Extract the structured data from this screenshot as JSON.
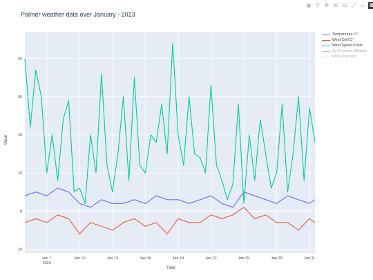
{
  "toolbar": {
    "icons": [
      "camera-icon",
      "zoom-icon",
      "pan-icon",
      "zoom-in-icon",
      "zoom-out-icon",
      "autoscale-icon",
      "reset-axes-icon",
      "plotly-logo-icon"
    ]
  },
  "colors": {
    "plot_bg": "#e5ecf6",
    "temperature": "#636efa",
    "wind_chill": "#ef553b",
    "wind_speed": "#00cc96",
    "air_pressure": "#ab63fa",
    "wind_direction": "#ffa15a"
  },
  "chart_data": {
    "type": "line",
    "title": "Palmer weather data over January - 2023",
    "xlabel": "Time",
    "ylabel": "Value",
    "xlim": [
      "2023-01-05",
      "2023-01-31T12:00"
    ],
    "ylim": [
      -11,
      47
    ],
    "x_ticks": [
      {
        "date": "2023-01-07",
        "label": "Jan 7",
        "sub": "2023"
      },
      {
        "date": "2023-01-10",
        "label": "Jan 10"
      },
      {
        "date": "2023-01-13",
        "label": "Jan 13"
      },
      {
        "date": "2023-01-16",
        "label": "Jan 16"
      },
      {
        "date": "2023-01-19",
        "label": "Jan 19"
      },
      {
        "date": "2023-01-22",
        "label": "Jan 22"
      },
      {
        "date": "2023-01-25",
        "label": "Jan 25"
      },
      {
        "date": "2023-01-28",
        "label": "Jan 28"
      },
      {
        "date": "2023-01-31",
        "label": "Jan 31"
      }
    ],
    "y_ticks": [
      -10,
      0,
      10,
      20,
      30,
      40
    ],
    "grid": true,
    "legend_position": "right",
    "series": [
      {
        "name": "Temperature C°",
        "visible": true,
        "x": [
          "2023-01-05",
          "2023-01-06",
          "2023-01-07",
          "2023-01-08",
          "2023-01-09",
          "2023-01-10",
          "2023-01-11",
          "2023-01-12",
          "2023-01-13",
          "2023-01-14",
          "2023-01-15",
          "2023-01-16",
          "2023-01-17",
          "2023-01-18",
          "2023-01-19",
          "2023-01-20",
          "2023-01-21",
          "2023-01-22",
          "2023-01-23",
          "2023-01-24",
          "2023-01-25",
          "2023-01-26",
          "2023-01-27",
          "2023-01-28",
          "2023-01-29",
          "2023-01-30",
          "2023-01-31",
          "2023-01-31T12:00"
        ],
        "values": [
          4,
          5,
          4,
          6,
          5,
          2,
          1,
          3,
          2,
          2,
          3,
          2,
          4,
          3,
          3,
          2,
          3,
          4,
          2,
          1,
          5,
          4,
          3,
          2,
          4,
          3,
          2,
          3
        ]
      },
      {
        "name": "Wind Chill C°",
        "visible": true,
        "x": [
          "2023-01-05",
          "2023-01-06",
          "2023-01-07",
          "2023-01-08",
          "2023-01-09",
          "2023-01-10",
          "2023-01-11",
          "2023-01-12",
          "2023-01-13",
          "2023-01-14",
          "2023-01-15",
          "2023-01-16",
          "2023-01-17",
          "2023-01-18",
          "2023-01-19",
          "2023-01-20",
          "2023-01-21",
          "2023-01-22",
          "2023-01-23",
          "2023-01-24",
          "2023-01-25",
          "2023-01-26",
          "2023-01-27",
          "2023-01-28",
          "2023-01-29",
          "2023-01-30",
          "2023-01-31",
          "2023-01-31T12:00"
        ],
        "values": [
          -3,
          -2,
          -3,
          -1,
          -2,
          -6,
          -3,
          -4,
          -5,
          -3,
          -2,
          -4,
          -3,
          -6,
          -2,
          -3,
          -3,
          -1,
          -2,
          -1,
          1,
          -2,
          -1,
          -3,
          -3,
          -5,
          -2,
          -3
        ]
      },
      {
        "name": "Wind Speed Knots",
        "visible": true,
        "x": [
          "2023-01-05",
          "2023-01-05T12:00",
          "2023-01-06",
          "2023-01-06T12:00",
          "2023-01-07",
          "2023-01-07T12:00",
          "2023-01-08",
          "2023-01-08T12:00",
          "2023-01-09",
          "2023-01-09T12:00",
          "2023-01-10",
          "2023-01-10T12:00",
          "2023-01-11",
          "2023-01-11T12:00",
          "2023-01-12",
          "2023-01-12T12:00",
          "2023-01-13",
          "2023-01-13T12:00",
          "2023-01-14",
          "2023-01-14T12:00",
          "2023-01-15",
          "2023-01-15T12:00",
          "2023-01-16",
          "2023-01-16T12:00",
          "2023-01-17",
          "2023-01-17T12:00",
          "2023-01-18",
          "2023-01-18T12:00",
          "2023-01-19",
          "2023-01-19T12:00",
          "2023-01-20",
          "2023-01-20T12:00",
          "2023-01-21",
          "2023-01-21T12:00",
          "2023-01-22",
          "2023-01-22T12:00",
          "2023-01-23",
          "2023-01-23T12:00",
          "2023-01-24",
          "2023-01-24T12:00",
          "2023-01-25",
          "2023-01-25T12:00",
          "2023-01-26",
          "2023-01-26T12:00",
          "2023-01-27",
          "2023-01-27T12:00",
          "2023-01-28",
          "2023-01-28T12:00",
          "2023-01-29",
          "2023-01-29T12:00",
          "2023-01-30",
          "2023-01-30T12:00",
          "2023-01-31",
          "2023-01-31T12:00"
        ],
        "values": [
          40,
          22,
          37,
          30,
          10,
          20,
          8,
          24,
          29,
          5,
          6,
          2,
          20,
          10,
          36,
          12,
          5,
          15,
          30,
          8,
          35,
          12,
          10,
          20,
          18,
          28,
          15,
          44,
          20,
          12,
          30,
          15,
          14,
          10,
          33,
          12,
          8,
          3,
          7,
          28,
          2,
          20,
          8,
          24,
          15,
          6,
          10,
          28,
          5,
          15,
          30,
          8,
          27,
          18
        ]
      },
      {
        "name": "Air Pressure Millibars",
        "visible": false,
        "x": [],
        "values": []
      },
      {
        "name": "Wind Direction",
        "visible": false,
        "x": [],
        "values": []
      }
    ]
  }
}
